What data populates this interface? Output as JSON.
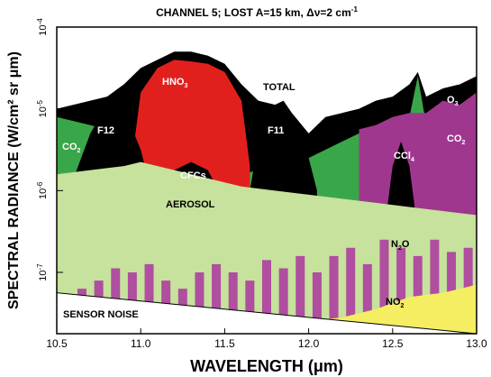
{
  "chart_data": {
    "type": "area",
    "title": "CHANNEL 5; LOST A=15 km, Δν=2 cm",
    "title_superscript": "-1",
    "xlabel": "WAVELENGTH (μm)",
    "ylabel": "SPECTRAL RADIANCE (W/cm² sr μm)",
    "xlim": [
      10.5,
      13.0
    ],
    "ylim_log10": [
      -7.75,
      -4.0
    ],
    "y_scale": "log",
    "grid": false,
    "x_ticks": [
      {
        "value": 10.5,
        "label": "10.5"
      },
      {
        "value": 11.0,
        "label": "11.0"
      },
      {
        "value": 11.5,
        "label": "11.5"
      },
      {
        "value": 12.0,
        "label": "12.0"
      },
      {
        "value": 12.5,
        "label": "12.5"
      },
      {
        "value": 13.0,
        "label": "13.0"
      }
    ],
    "y_ticks": [
      {
        "exp": -4,
        "label": "10",
        "sup": "-4"
      },
      {
        "exp": -5,
        "label": "10",
        "sup": "-5"
      },
      {
        "exp": -6,
        "label": "10",
        "sup": "-6"
      },
      {
        "exp": -7,
        "label": "10",
        "sup": "-7"
      }
    ],
    "colors": {
      "total": "#000000",
      "co2": "#3aa64a",
      "o3": "#a0378f",
      "hno3": "#e1201d",
      "cfc": "#5bbfc8",
      "aerosol": "#c6e29c",
      "n2o": "#b04ea0",
      "no2": "#f5ee63",
      "noise": "#ffffff"
    },
    "labels": {
      "hno3": "HNO",
      "hno3_sub": "3",
      "total": "TOTAL",
      "o3": "O",
      "o3_sub": "3",
      "co2_left": "CO",
      "co2_left_sub": "2",
      "co2_right": "CO",
      "co2_right_sub": "2",
      "f12": "F12",
      "f11": "F11",
      "cfcs": "CFCs",
      "ccl4": "CCl",
      "ccl4_sub": "4",
      "aerosol": "AEROSOL",
      "n2o": "N",
      "n2o_sub": "2",
      "n2o_end": "O",
      "no2": "NO",
      "no2_sub": "2",
      "sensor_noise": "SENSOR NOISE"
    },
    "series": [
      {
        "key": "total",
        "name": "TOTAL",
        "x": [
          10.5,
          10.6,
          10.7,
          10.8,
          10.9,
          11.0,
          11.1,
          11.2,
          11.3,
          11.4,
          11.5,
          11.6,
          11.7,
          11.8,
          11.9,
          12.0,
          12.1,
          12.2,
          12.3,
          12.4,
          12.5,
          12.6,
          12.65,
          12.7,
          12.8,
          12.9,
          13.0
        ],
        "y_log10": [
          -5.0,
          -4.95,
          -4.9,
          -4.85,
          -4.7,
          -4.5,
          -4.4,
          -4.3,
          -4.3,
          -4.35,
          -4.45,
          -4.7,
          -4.9,
          -4.95,
          -5.05,
          -5.3,
          -5.1,
          -5.05,
          -5.0,
          -4.9,
          -4.85,
          -4.7,
          -4.55,
          -4.85,
          -4.75,
          -4.7,
          -4.6
        ]
      },
      {
        "key": "co2",
        "name": "CO2",
        "x": [
          10.5,
          10.6,
          10.7,
          10.8,
          10.9,
          11.0,
          11.1,
          11.2,
          11.3,
          11.4,
          11.5,
          11.6,
          11.7,
          11.8,
          11.9,
          12.0,
          12.1,
          12.2,
          12.3,
          12.4,
          12.5,
          12.6,
          12.65,
          12.7,
          12.8,
          12.9,
          13.0
        ],
        "y_log10": [
          -5.1,
          -5.15,
          -5.2,
          -5.25,
          -5.35,
          -5.45,
          -5.55,
          -5.6,
          -5.65,
          -5.7,
          -5.75,
          -5.8,
          -5.75,
          -5.7,
          -5.55,
          -5.6,
          -5.5,
          -5.4,
          -5.3,
          -5.2,
          -5.15,
          -5.1,
          -4.6,
          -5.2,
          -5.15,
          -5.05,
          -4.85
        ]
      },
      {
        "key": "o3",
        "name": "O3",
        "x": [
          12.3,
          12.4,
          12.5,
          12.6,
          12.7,
          12.8,
          12.9,
          13.0
        ],
        "y_log10": [
          -5.25,
          -5.2,
          -5.1,
          -5.05,
          -5.05,
          -4.9,
          -4.95,
          -4.8
        ]
      },
      {
        "key": "hno3",
        "name": "HNO3",
        "x": [
          10.95,
          11.0,
          11.1,
          11.2,
          11.3,
          11.4,
          11.5,
          11.6,
          11.65
        ],
        "y_log10": [
          -5.6,
          -4.8,
          -4.5,
          -4.4,
          -4.42,
          -4.45,
          -4.55,
          -4.9,
          -5.7
        ]
      },
      {
        "key": "f12",
        "name": "F12",
        "x": [
          10.6,
          10.7,
          10.8,
          10.85,
          10.9,
          11.0,
          11.05
        ],
        "y_log10": [
          -5.85,
          -5.3,
          -4.95,
          -4.85,
          -5.0,
          -5.5,
          -5.9
        ]
      },
      {
        "key": "f11",
        "name": "F11",
        "x": [
          11.65,
          11.7,
          11.8,
          11.85,
          11.9,
          12.0,
          12.05
        ],
        "y_log10": [
          -6.0,
          -5.4,
          -4.95,
          -4.9,
          -5.05,
          -5.6,
          -6.0
        ]
      },
      {
        "key": "cfcs",
        "name": "CFCs",
        "x": [
          11.15,
          11.2,
          11.3,
          11.4,
          11.45
        ],
        "y_log10": [
          -5.95,
          -5.75,
          -5.65,
          -5.75,
          -5.95
        ]
      },
      {
        "key": "ccl4",
        "name": "CCl4",
        "x": [
          12.45,
          12.5,
          12.55,
          12.6,
          12.65
        ],
        "y_log10": [
          -6.5,
          -5.7,
          -5.4,
          -5.7,
          -6.5
        ]
      },
      {
        "key": "aerosol",
        "name": "AEROSOL",
        "x": [
          10.5,
          10.7,
          10.9,
          11.0,
          11.2,
          11.4,
          11.6,
          11.8,
          12.0,
          12.2,
          12.4,
          12.6,
          12.8,
          13.0
        ],
        "y_log10": [
          -5.8,
          -5.75,
          -5.7,
          -5.65,
          -5.75,
          -5.85,
          -5.95,
          -6.0,
          -6.05,
          -6.1,
          -6.15,
          -6.2,
          -6.25,
          -6.3
        ]
      },
      {
        "key": "n2o",
        "name": "N2O",
        "x": [
          10.55,
          10.65,
          10.75,
          10.85,
          10.95,
          11.05,
          11.15,
          11.25,
          11.35,
          11.45,
          11.55,
          11.65,
          11.75,
          11.85,
          11.95,
          12.05,
          12.15,
          12.25,
          12.35,
          12.45,
          12.55,
          12.65,
          12.75,
          12.85,
          12.95
        ],
        "y_log10": [
          -7.3,
          -7.2,
          -7.1,
          -6.95,
          -7.0,
          -6.9,
          -7.1,
          -7.2,
          -7.0,
          -6.9,
          -7.0,
          -7.1,
          -6.85,
          -6.95,
          -6.8,
          -7.0,
          -6.8,
          -6.7,
          -6.9,
          -6.6,
          -6.7,
          -6.8,
          -6.6,
          -6.75,
          -6.7
        ]
      },
      {
        "key": "no2",
        "name": "NO2",
        "x": [
          12.0,
          12.2,
          12.4,
          12.6,
          12.8,
          13.0
        ],
        "y_log10": [
          -7.6,
          -7.55,
          -7.45,
          -7.3,
          -7.25,
          -7.15
        ]
      },
      {
        "key": "noise",
        "name": "SENSOR NOISE",
        "x": [
          10.5,
          11.0,
          11.5,
          12.0,
          12.5,
          13.0
        ],
        "y_log10": [
          -7.25,
          -7.35,
          -7.45,
          -7.55,
          -7.65,
          -7.75
        ]
      }
    ]
  }
}
